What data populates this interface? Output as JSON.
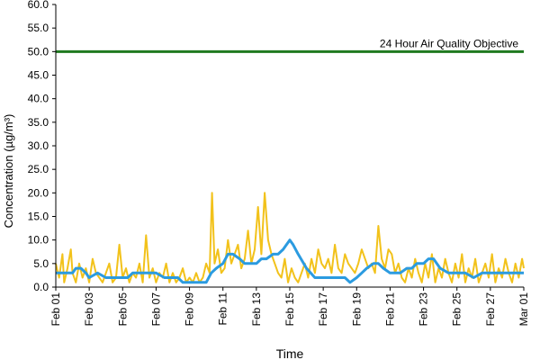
{
  "chart_data": {
    "type": "line",
    "xlabel": "Time",
    "ylabel": "Concentration (µg/m³)",
    "ylim": [
      0,
      60
    ],
    "xlim": [
      "Feb 01",
      "Mar 01"
    ],
    "grid": false,
    "y_ticks": [
      "0.0",
      "5.0",
      "10.0",
      "15.0",
      "20.0",
      "25.0",
      "30.0",
      "35.0",
      "40.0",
      "45.0",
      "50.0",
      "55.0",
      "60.0"
    ],
    "x_ticks": [
      "Feb 01",
      "Feb 03",
      "Feb 05",
      "Feb 07",
      "Feb 09",
      "Feb 11",
      "Feb 13",
      "Feb 15",
      "Feb 17",
      "Feb 19",
      "Feb 21",
      "Feb 23",
      "Feb 25",
      "Feb 27",
      "Mar 01"
    ],
    "colors": {
      "hourly": "#f2c21b",
      "running_avg": "#2b9be0",
      "objective": "#1f7a1f"
    },
    "objective": {
      "label": "24 Hour Air Quality Objective",
      "value": 50
    },
    "series": [
      {
        "role": "hourly",
        "x_days": [
          0,
          0.2,
          0.4,
          0.5,
          0.7,
          0.9,
          1,
          1.2,
          1.4,
          1.6,
          1.8,
          2,
          2.2,
          2.4,
          2.6,
          2.8,
          3,
          3.2,
          3.4,
          3.6,
          3.8,
          4,
          4.2,
          4.4,
          4.6,
          4.8,
          5,
          5.2,
          5.4,
          5.6,
          5.8,
          6,
          6.2,
          6.4,
          6.6,
          6.8,
          7,
          7.2,
          7.4,
          7.6,
          7.8,
          8,
          8.2,
          8.4,
          8.6,
          8.8,
          9,
          9.2,
          9.35,
          9.5,
          9.7,
          9.9,
          10.1,
          10.3,
          10.5,
          10.7,
          10.9,
          11.1,
          11.3,
          11.5,
          11.7,
          11.9,
          12.1,
          12.3,
          12.5,
          12.7,
          12.9,
          13.1,
          13.3,
          13.5,
          13.7,
          13.9,
          14.1,
          14.3,
          14.5,
          14.7,
          14.9,
          15.1,
          15.3,
          15.5,
          15.7,
          15.9,
          16.1,
          16.3,
          16.5,
          16.7,
          16.9,
          17.1,
          17.3,
          17.5,
          17.7,
          17.9,
          18.1,
          18.3,
          18.5,
          18.7,
          18.9,
          19.1,
          19.3,
          19.5,
          19.7,
          19.9,
          20.1,
          20.3,
          20.5,
          20.7,
          20.9,
          21.1,
          21.3,
          21.5,
          21.7,
          21.9,
          22.1,
          22.3,
          22.5,
          22.7,
          22.9,
          23.1,
          23.3,
          23.5,
          23.7,
          23.9,
          24.1,
          24.3,
          24.5,
          24.7,
          24.9,
          25.1,
          25.3,
          25.5,
          25.7,
          25.9,
          26.1,
          26.3,
          26.5,
          26.7,
          26.9,
          27.1,
          27.3,
          27.5,
          27.7,
          27.9,
          28
        ],
        "values": [
          5,
          2,
          7,
          1,
          4,
          8,
          3,
          1,
          5,
          2,
          4,
          1,
          6,
          3,
          2,
          1,
          3,
          5,
          1,
          2,
          9,
          2,
          4,
          1,
          3,
          2,
          5,
          1,
          11,
          2,
          4,
          1,
          3,
          2,
          5,
          1,
          3,
          1,
          2,
          4,
          1,
          2,
          1,
          3,
          1,
          2,
          5,
          3,
          20,
          5,
          8,
          3,
          4,
          10,
          5,
          7,
          9,
          4,
          6,
          12,
          5,
          8,
          17,
          7,
          20,
          10,
          7,
          5,
          3,
          2,
          6,
          1,
          4,
          2,
          1,
          3,
          5,
          2,
          6,
          3,
          8,
          5,
          4,
          6,
          3,
          9,
          4,
          3,
          7,
          5,
          4,
          3,
          5,
          8,
          6,
          4,
          5,
          3,
          13,
          6,
          4,
          8,
          7,
          3,
          5,
          2,
          1,
          4,
          2,
          6,
          3,
          1,
          5,
          2,
          7,
          1,
          4,
          2,
          6,
          3,
          1,
          5,
          2,
          7,
          1,
          4,
          2,
          6,
          1,
          3,
          5,
          2,
          7,
          1,
          4,
          2,
          6,
          3,
          1,
          5,
          2,
          6,
          4
        ]
      },
      {
        "role": "running_avg",
        "x_days": [
          0,
          0.5,
          1,
          1.2,
          1.5,
          1.8,
          2,
          2.5,
          3,
          3.3,
          3.6,
          4,
          4.3,
          4.6,
          5,
          5.5,
          6,
          6.5,
          7,
          7.3,
          7.6,
          8,
          8.5,
          9,
          9.3,
          9.6,
          10,
          10.3,
          10.6,
          11,
          11.3,
          11.6,
          12,
          12.3,
          12.6,
          13,
          13.3,
          13.6,
          13.8,
          14,
          14.2,
          14.5,
          15,
          15.5,
          16,
          16.3,
          16.6,
          17,
          17.3,
          17.6,
          18,
          18.3,
          18.6,
          19,
          19.3,
          19.6,
          20,
          20.3,
          20.6,
          21,
          21.3,
          21.6,
          22,
          22.3,
          22.6,
          23,
          23.5,
          24,
          24.5,
          25,
          25.5,
          26,
          26.5,
          27,
          27.5,
          28
        ],
        "values": [
          3,
          3,
          3,
          4,
          4,
          3,
          2,
          3,
          2,
          2,
          2,
          2,
          2,
          3,
          3,
          3,
          3,
          2,
          2,
          2,
          1,
          1,
          1,
          1,
          3,
          4,
          5,
          7,
          7,
          6,
          5,
          5,
          5,
          6,
          6,
          7,
          7,
          8,
          9,
          10,
          9,
          7,
          4,
          2,
          2,
          2,
          2,
          2,
          2,
          1,
          2,
          3,
          4,
          5,
          5,
          4,
          3,
          3,
          3,
          4,
          4,
          5,
          5,
          6,
          6,
          4,
          3,
          3,
          3,
          2,
          3,
          3,
          3,
          3,
          3,
          3
        ]
      }
    ]
  }
}
